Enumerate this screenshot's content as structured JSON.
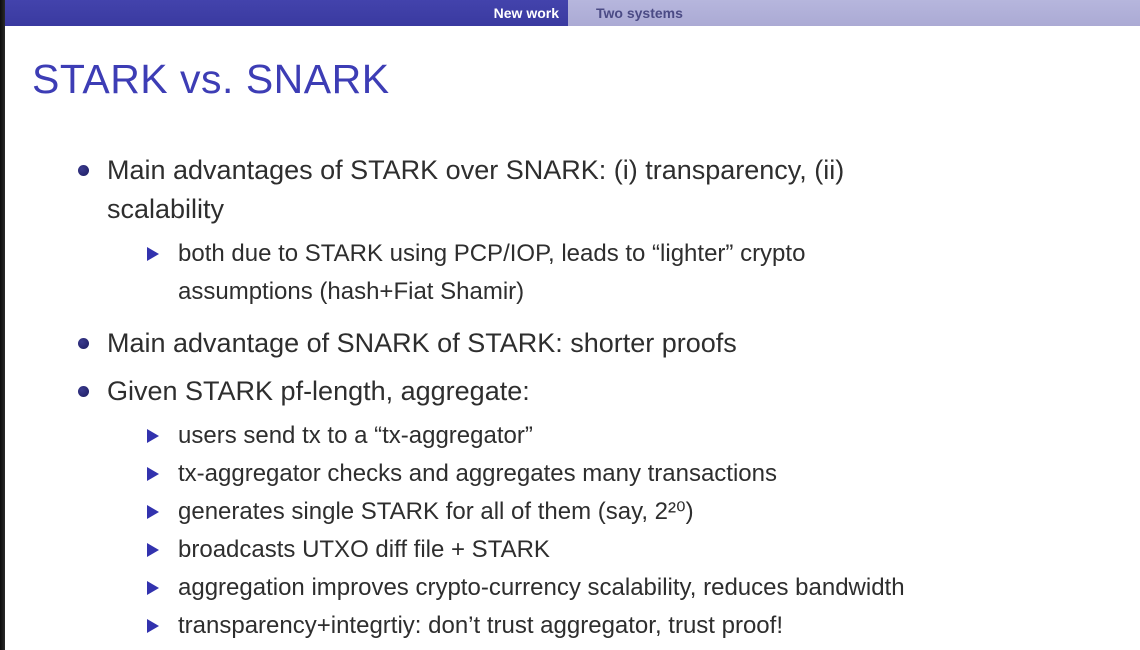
{
  "header": {
    "sections": [
      {
        "label": "New work",
        "active": true
      },
      {
        "label": "Two systems",
        "active": false
      }
    ]
  },
  "slide": {
    "title": "STARK vs. SNARK",
    "bullets": [
      {
        "text": "Main advantages of STARK over SNARK: (i) transparency, (ii)\nscalability",
        "subs": [
          "both due to STARK using PCP/IOP, leads to “lighter” crypto\nassumptions (hash+Fiat Shamir)"
        ]
      },
      {
        "text": "Main advantage of SNARK of STARK: shorter proofs",
        "subs": []
      },
      {
        "text": "Given STARK pf-length, aggregate:",
        "subs": [
          "users send tx to a “tx-aggregator”",
          "tx-aggregator checks and aggregates many transactions",
          "generates single STARK for all of them (say, 2²⁰)",
          "broadcasts UTXO diff file + STARK",
          "aggregation improves crypto-currency scalability, reduces bandwidth",
          "transparency+integrtiy: don’t trust aggregator, trust proof!"
        ]
      }
    ]
  },
  "colors": {
    "header_primary": "#3d3da6",
    "header_secondary": "#b0b0d8",
    "title_blue": "#3d3db5",
    "bullet_navy": "#1c1c60",
    "triangle_blue": "#3232ae",
    "body_text": "#2e2e2e"
  }
}
